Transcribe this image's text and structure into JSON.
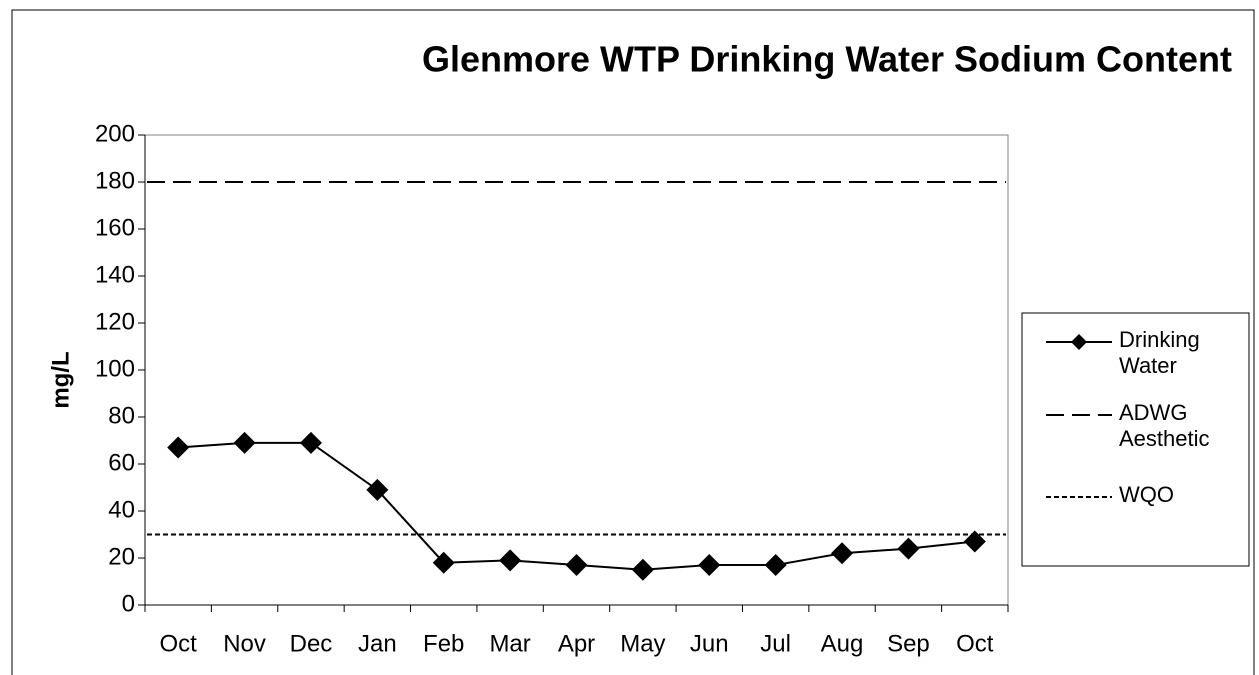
{
  "chart_data": {
    "type": "line",
    "title": "Glenmore WTP Drinking Water Sodium Content",
    "y_label": "mg/L",
    "categories": [
      "Oct",
      "Nov",
      "Dec",
      "Jan",
      "Feb",
      "Mar",
      "Apr",
      "May",
      "Jun",
      "Jul",
      "Aug",
      "Sep",
      "Oct"
    ],
    "series": [
      {
        "name": "Drinking Water",
        "color": "#000000",
        "style": "solid",
        "marker": "diamond",
        "values": [
          67,
          69,
          69,
          49,
          18,
          19,
          17,
          15,
          17,
          17,
          22,
          24,
          27
        ]
      },
      {
        "name": "ADWG Aesthetic",
        "color": "#000000",
        "style": "dashed",
        "value": 180
      },
      {
        "name": "WQO",
        "color": "#000000",
        "style": "dotted",
        "value": 30
      }
    ],
    "ylim": [
      0,
      200
    ],
    "yticks": [
      0,
      20,
      40,
      60,
      80,
      100,
      120,
      140,
      160,
      180,
      200
    ],
    "legend": "right"
  }
}
